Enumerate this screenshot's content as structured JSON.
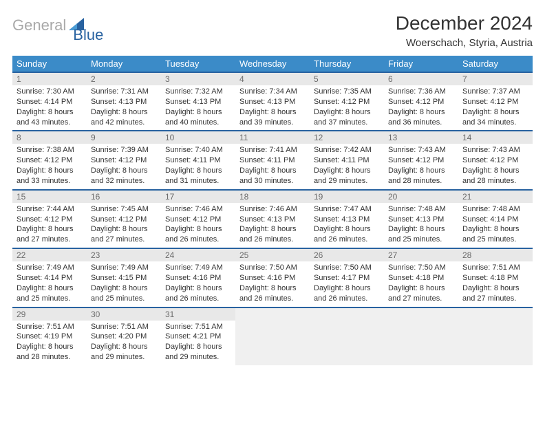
{
  "logo": {
    "text1": "General",
    "text2": "Blue",
    "accent": "#2862A0",
    "gray": "#A9A9A9"
  },
  "title": "December 2024",
  "location": "Woerschach, Styria, Austria",
  "colors": {
    "header_bg": "#3B8BC8",
    "header_border": "#2862A0",
    "daynum_bg": "#E8E8E8",
    "daynum_fg": "#6B6B6B",
    "empty_bg": "#F0F0F0",
    "text": "#333333"
  },
  "weekdays": [
    "Sunday",
    "Monday",
    "Tuesday",
    "Wednesday",
    "Thursday",
    "Friday",
    "Saturday"
  ],
  "days": [
    {
      "n": "1",
      "sunrise": "7:30 AM",
      "sunset": "4:14 PM",
      "dh": "8",
      "dm": "43"
    },
    {
      "n": "2",
      "sunrise": "7:31 AM",
      "sunset": "4:13 PM",
      "dh": "8",
      "dm": "42"
    },
    {
      "n": "3",
      "sunrise": "7:32 AM",
      "sunset": "4:13 PM",
      "dh": "8",
      "dm": "40"
    },
    {
      "n": "4",
      "sunrise": "7:34 AM",
      "sunset": "4:13 PM",
      "dh": "8",
      "dm": "39"
    },
    {
      "n": "5",
      "sunrise": "7:35 AM",
      "sunset": "4:12 PM",
      "dh": "8",
      "dm": "37"
    },
    {
      "n": "6",
      "sunrise": "7:36 AM",
      "sunset": "4:12 PM",
      "dh": "8",
      "dm": "36"
    },
    {
      "n": "7",
      "sunrise": "7:37 AM",
      "sunset": "4:12 PM",
      "dh": "8",
      "dm": "34"
    },
    {
      "n": "8",
      "sunrise": "7:38 AM",
      "sunset": "4:12 PM",
      "dh": "8",
      "dm": "33"
    },
    {
      "n": "9",
      "sunrise": "7:39 AM",
      "sunset": "4:12 PM",
      "dh": "8",
      "dm": "32"
    },
    {
      "n": "10",
      "sunrise": "7:40 AM",
      "sunset": "4:11 PM",
      "dh": "8",
      "dm": "31"
    },
    {
      "n": "11",
      "sunrise": "7:41 AM",
      "sunset": "4:11 PM",
      "dh": "8",
      "dm": "30"
    },
    {
      "n": "12",
      "sunrise": "7:42 AM",
      "sunset": "4:11 PM",
      "dh": "8",
      "dm": "29"
    },
    {
      "n": "13",
      "sunrise": "7:43 AM",
      "sunset": "4:12 PM",
      "dh": "8",
      "dm": "28"
    },
    {
      "n": "14",
      "sunrise": "7:43 AM",
      "sunset": "4:12 PM",
      "dh": "8",
      "dm": "28"
    },
    {
      "n": "15",
      "sunrise": "7:44 AM",
      "sunset": "4:12 PM",
      "dh": "8",
      "dm": "27"
    },
    {
      "n": "16",
      "sunrise": "7:45 AM",
      "sunset": "4:12 PM",
      "dh": "8",
      "dm": "27"
    },
    {
      "n": "17",
      "sunrise": "7:46 AM",
      "sunset": "4:12 PM",
      "dh": "8",
      "dm": "26"
    },
    {
      "n": "18",
      "sunrise": "7:46 AM",
      "sunset": "4:13 PM",
      "dh": "8",
      "dm": "26"
    },
    {
      "n": "19",
      "sunrise": "7:47 AM",
      "sunset": "4:13 PM",
      "dh": "8",
      "dm": "26"
    },
    {
      "n": "20",
      "sunrise": "7:48 AM",
      "sunset": "4:13 PM",
      "dh": "8",
      "dm": "25"
    },
    {
      "n": "21",
      "sunrise": "7:48 AM",
      "sunset": "4:14 PM",
      "dh": "8",
      "dm": "25"
    },
    {
      "n": "22",
      "sunrise": "7:49 AM",
      "sunset": "4:14 PM",
      "dh": "8",
      "dm": "25"
    },
    {
      "n": "23",
      "sunrise": "7:49 AM",
      "sunset": "4:15 PM",
      "dh": "8",
      "dm": "25"
    },
    {
      "n": "24",
      "sunrise": "7:49 AM",
      "sunset": "4:16 PM",
      "dh": "8",
      "dm": "26"
    },
    {
      "n": "25",
      "sunrise": "7:50 AM",
      "sunset": "4:16 PM",
      "dh": "8",
      "dm": "26"
    },
    {
      "n": "26",
      "sunrise": "7:50 AM",
      "sunset": "4:17 PM",
      "dh": "8",
      "dm": "26"
    },
    {
      "n": "27",
      "sunrise": "7:50 AM",
      "sunset": "4:18 PM",
      "dh": "8",
      "dm": "27"
    },
    {
      "n": "28",
      "sunrise": "7:51 AM",
      "sunset": "4:18 PM",
      "dh": "8",
      "dm": "27"
    },
    {
      "n": "29",
      "sunrise": "7:51 AM",
      "sunset": "4:19 PM",
      "dh": "8",
      "dm": "28"
    },
    {
      "n": "30",
      "sunrise": "7:51 AM",
      "sunset": "4:20 PM",
      "dh": "8",
      "dm": "29"
    },
    {
      "n": "31",
      "sunrise": "7:51 AM",
      "sunset": "4:21 PM",
      "dh": "8",
      "dm": "29"
    }
  ],
  "labels": {
    "sunrise": "Sunrise: ",
    "sunset": "Sunset: ",
    "daylight": "Daylight: ",
    "hours_and": " hours and ",
    "minutes": " minutes."
  }
}
